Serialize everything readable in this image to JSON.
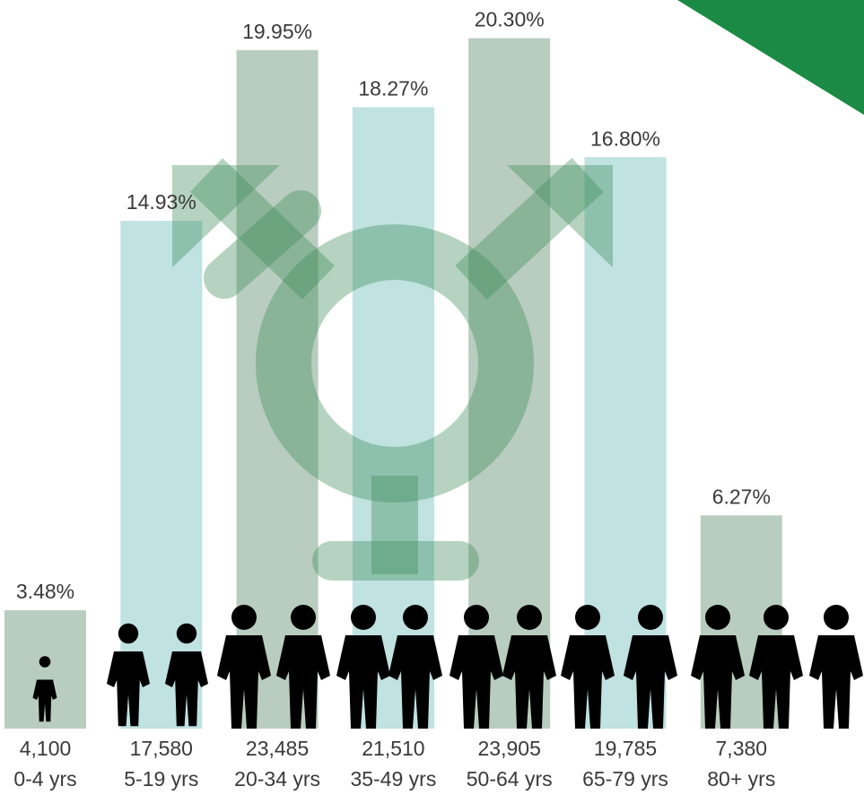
{
  "chart_data": {
    "type": "bar",
    "categories": [
      "0-4 yrs",
      "5-19 yrs",
      "20-34 yrs",
      "35-49 yrs",
      "50-64 yrs",
      "65-79 yrs",
      "80+ yrs"
    ],
    "values": [
      3.48,
      14.93,
      19.95,
      18.27,
      20.3,
      16.8,
      6.27
    ],
    "value_labels": [
      "3.48%",
      "14.93%",
      "19.95%",
      "18.27%",
      "20.30%",
      "16.80%",
      "6.27%"
    ],
    "counts": [
      {
        "value": 4100,
        "label": "4,100"
      },
      {
        "value": 17580,
        "label": "17,580"
      },
      {
        "value": 23485,
        "label": "23,485"
      },
      {
        "value": 21510,
        "label": "21,510"
      },
      {
        "value": 23905,
        "label": "23,905"
      },
      {
        "value": 19785,
        "label": "19,785"
      },
      {
        "value": 7380,
        "label": "7,380"
      }
    ],
    "colors": [
      "#b8cdbf",
      "#c0e2e1",
      "#b8cdbf",
      "#c0e2e1",
      "#b8cdbf",
      "#c0e2e1",
      "#b8cdbf"
    ],
    "ylim": [
      0,
      21
    ]
  }
}
